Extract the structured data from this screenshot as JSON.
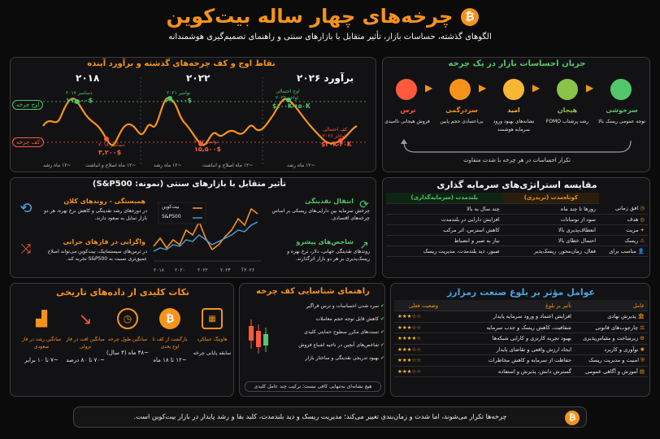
{
  "header": {
    "title": "چرخه‌های چهار ساله بیت‌کوین",
    "subtitle": "الگوهای گذشته، حساسات بازار، تأثیر متقابل با بازارهای سنتی و راهنمای تصمیم‌گیری هوشمندانه",
    "logo_letter": "₿"
  },
  "cycles": {
    "title": "نقاط اوج و کف چرخه‌های گذشته و برآورد آینده",
    "label_peak": "اوج چرخه",
    "label_trough": "کف چرخه",
    "years": [
      "۲۰۱۸",
      "۲۰۲۲",
      "برآورد ۲۰۲۶"
    ],
    "points": [
      {
        "label": "دسامبر ۲۰۱۷",
        "value": "۱۹,۰۰۰$"
      },
      {
        "label": "دسامبر ۲۰۱۸",
        "value": "۳,۲۰۰$"
      },
      {
        "label": "نوامبر ۲۰۲۱",
        "value": "۶۹,۰۰۰$"
      },
      {
        "label": "نوامبر ۲۰۲۲",
        "value": "۱۵,۵۰۰$"
      },
      {
        "label": "اوج احتمالی",
        "value": "اواخر ۲۰۲۵"
      },
      {
        "label": "۱۰۰K-۱۵۰K$",
        "value": ""
      },
      {
        "label": "کف احتمالی",
        "value": "اواخر ۲۰۲۶"
      },
      {
        "label": "۳۰K-۴۰K$",
        "value": ""
      }
    ],
    "axis_labels": [
      "~۱۲ ماه رشد",
      "~۱۲ ماه اصلاح و انباشت",
      "~۱۲ ماه رشد",
      "~۱۲ ماه اصلاح و انباشت",
      "~۱۲ ماه رشد"
    ]
  },
  "emotions": {
    "title": "جریان احساسات بازار در یک چرخه",
    "stages": [
      {
        "name": "سرخوشی",
        "desc": "توجه عمومی ریسک بالا",
        "color": "#52c76a"
      },
      {
        "name": "هیجان",
        "desc": "رشد پرشتاب FOMO",
        "color": "#8bc34a"
      },
      {
        "name": "امید",
        "desc": "نشانه‌های بهبود ورود سرمایه هوشمند",
        "color": "#f7b731"
      },
      {
        "name": "سردرگمی",
        "desc": "بی‌اعتمادی حجم پایین",
        "color": "#f7931a"
      },
      {
        "name": "ترس",
        "desc": "فروش هیجانی ناامیدی",
        "color": "#ff5a3c"
      }
    ],
    "footer": "تکرار احساسات در هر چرخه با شدت متفاوت"
  },
  "traditional": {
    "title": "تأثیر متقابل با بازارهای سنتی (نمونه: S&P500)",
    "left_items": [
      {
        "title": "همبستگی - روندهای کلان",
        "desc": "در دوره‌های رشد نقدینگی و کاهش نرخ بهره، هر دو بازار تمایل به صعود دارند."
      },
      {
        "title": "واگرایی در فازهای حرانی",
        "desc": "در ترس‌های سیستماتیک، بیت‌کوین می‌تواند اصلاح عمیق‌تری نسبت به S&P500 تجربه کند."
      }
    ],
    "right_items": [
      {
        "title": "انتقال نقدینگی",
        "desc": "چرخش سرمایه بین دارایی‌های ریسکی بر اساس چرخه‌های اقتصادی."
      },
      {
        "title": "شاخص‌های پیشرو",
        "desc": "روندهای نقدینگی جهانی، دلار، نرخ بهره و ریسک‌پذیری بر هر دو بازار اثرگذارند."
      }
    ],
    "legend": [
      "بیت‌کوین",
      "S&P500"
    ],
    "years": [
      "۲۰۱۸",
      "۲۰۲۰",
      "۲۰۲۲",
      "۲۰۲۴",
      "۲۰۲۶؟"
    ]
  },
  "strategies": {
    "title": "مقایسه استراتژی‌های سرمایه گذاری",
    "col_short": "کوتاه‌مدت (تریدری)",
    "col_long": "بلندمدت (سرمایه‌گذاری)",
    "rows": [
      {
        "label": "افق زمانی",
        "short": "روزها تا چند ماه",
        "long": "چند سال به بالا"
      },
      {
        "label": "هدف",
        "short": "سود از نوسانات",
        "long": "افزایش دارایی در بلندمدت"
      },
      {
        "label": "مزیت",
        "short": "انعطاف‌پذیری بالا",
        "long": "کاهش استرس، اثر مرکب"
      },
      {
        "label": "ریسک",
        "short": "احتمال خطای بالا",
        "long": "نیاز به صبر و انضباط"
      },
      {
        "label": "مناسب برای",
        "short": "فعال، زمان‌محور، ریسک‌پذیر",
        "long": "صبور، دید بلندمدت، مدیریت ریسک"
      }
    ]
  },
  "data_points": {
    "title": "نکات کلیدی از داده‌های تاریخی",
    "items": [
      {
        "title": "میانگین رشد در فاز صعودی",
        "value": "~۷ تا ۱۰ برابر"
      },
      {
        "title": "میانگین افت در فاز نزولی",
        "value": "~۷۰ تا ۸۰ درصد"
      },
      {
        "title": "میانگین طول چرخه",
        "value": "~۴۸ ماه (۴ سال)"
      },
      {
        "title": "بازگشت از کف تا اوج بعدی",
        "value": "~۱۲ تا ۱۸ ماه"
      },
      {
        "title": "هاوینگ عملکرد",
        "value": "سابقه پایانی چرخه"
      }
    ]
  },
  "bottom_guide": {
    "title": "راهنمای شناسایی کف چرخه",
    "items": [
      "سرد شدن احساسات و ترس فراگیر",
      "کاهش قابل توجه حجم معاملات",
      "تست‌های مکرر سطوح حمایتی کلیدی",
      "شاخص‌های آنچین در ناحیه اشباع فروش",
      "بهبود تدریجی نقدینگی و ساختار بازار"
    ],
    "note": "هیچ نشانه‌ای به‌تنهایی کافی نیست؛ ترکیب چند عامل کلیدی"
  },
  "maturity": {
    "title": "عوامل مؤثر بر بلوغ صنعت رمزارز",
    "col_factor": "عامل",
    "col_effect": "تأثیر بر بلوغ",
    "col_status": "وضعیت فعلی",
    "rows": [
      {
        "factor": "پذیرش نهادی",
        "effect": "افزایش اعتماد و ورود سرمایه پایدار",
        "stars": "★★★☆☆"
      },
      {
        "factor": "چارچوب‌های قانونی",
        "effect": "شفافیت، کاهش ریسک و جذب سرمایه",
        "stars": "★★★☆☆"
      },
      {
        "factor": "زیرساخت و مقیاس‌پذیری",
        "effect": "بهبود تجربه کاربری و کارایی شبکه‌ها",
        "stars": "★★★★☆"
      },
      {
        "factor": "نوآوری و کاربرد",
        "effect": "ایجاد ارزش واقعی و تقاضای پایدار",
        "stars": "★★★☆☆"
      },
      {
        "factor": "امنیت و مدیریت ریسک",
        "effect": "حفاظت از سرمایه و کاهش مخاطرات",
        "stars": "★★★☆☆"
      },
      {
        "factor": "آموزش و آگاهی عمومی",
        "effect": "گسترش دانش، پذیرش و استفاده",
        "stars": "★★★☆☆"
      }
    ]
  },
  "footer": {
    "text": "چرخه‌ها تکرار می‌شوند، اما شدت و زمان‌بندی تغییر می‌کند؛ مدیریت ریسک و دید بلندمدت، کلید بقا و رشد پایدار در بازار بیت‌کوین است."
  }
}
